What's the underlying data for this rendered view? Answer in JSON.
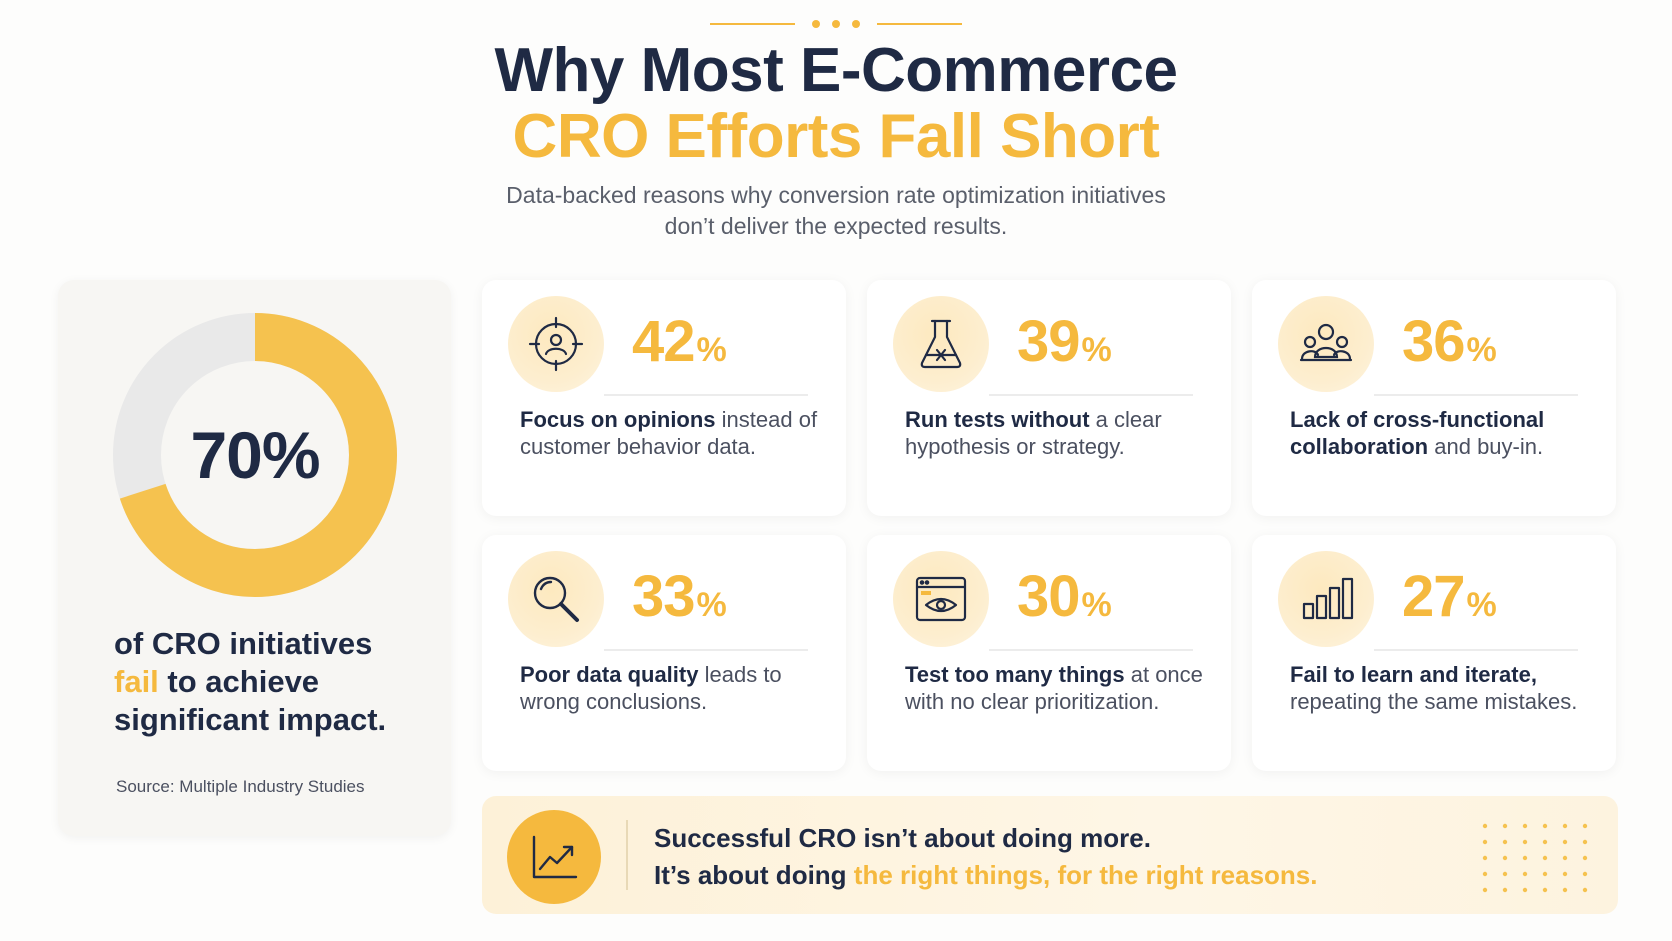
{
  "header": {
    "title_line1": "Why Most E-Commerce",
    "title_line2": "CRO Efforts Fall Short",
    "subtitle_line1": "Data-backed reasons why conversion rate optimization initiatives",
    "subtitle_line2": "don’t deliver the expected results."
  },
  "highlight": {
    "percent_label": "70%",
    "percent_value": 70,
    "statement_part1": "of CRO initiatives",
    "statement_fail": "fail",
    "statement_part2": "to achieve",
    "statement_part3": "significant impact.",
    "source": "Source: Multiple Industry Studies"
  },
  "stats": [
    {
      "value": "42",
      "unit": "%",
      "icon": "target-person-icon",
      "bold": "Focus on opinions",
      "rest": "instead of customer behavior data."
    },
    {
      "value": "39",
      "unit": "%",
      "icon": "flask-icon",
      "bold": "Run tests without",
      "rest": "a clear hypothesis or strategy."
    },
    {
      "value": "36",
      "unit": "%",
      "icon": "team-icon",
      "bold": "Lack of cross-functional collaboration",
      "rest": "and buy-in."
    },
    {
      "value": "33",
      "unit": "%",
      "icon": "magnifier-icon",
      "bold": "Poor data quality",
      "rest": "leads to wrong conclusions."
    },
    {
      "value": "30",
      "unit": "%",
      "icon": "browser-eye-icon",
      "bold": "Test too many things",
      "rest": "at once with no clear prioritization."
    },
    {
      "value": "27",
      "unit": "%",
      "icon": "bar-chart-icon",
      "bold": "Fail to learn and iterate,",
      "rest": "repeating the same mistakes."
    }
  ],
  "banner": {
    "icon": "trend-chart-icon",
    "line1": "Successful CRO isn’t about doing more.",
    "line2_prefix": "It’s about doing",
    "line2_highlight": "the right things, for the right reasons."
  },
  "colors": {
    "navy": "#1f2a44",
    "gold": "#f5b93e",
    "donut_track": "#e9e9e9"
  }
}
